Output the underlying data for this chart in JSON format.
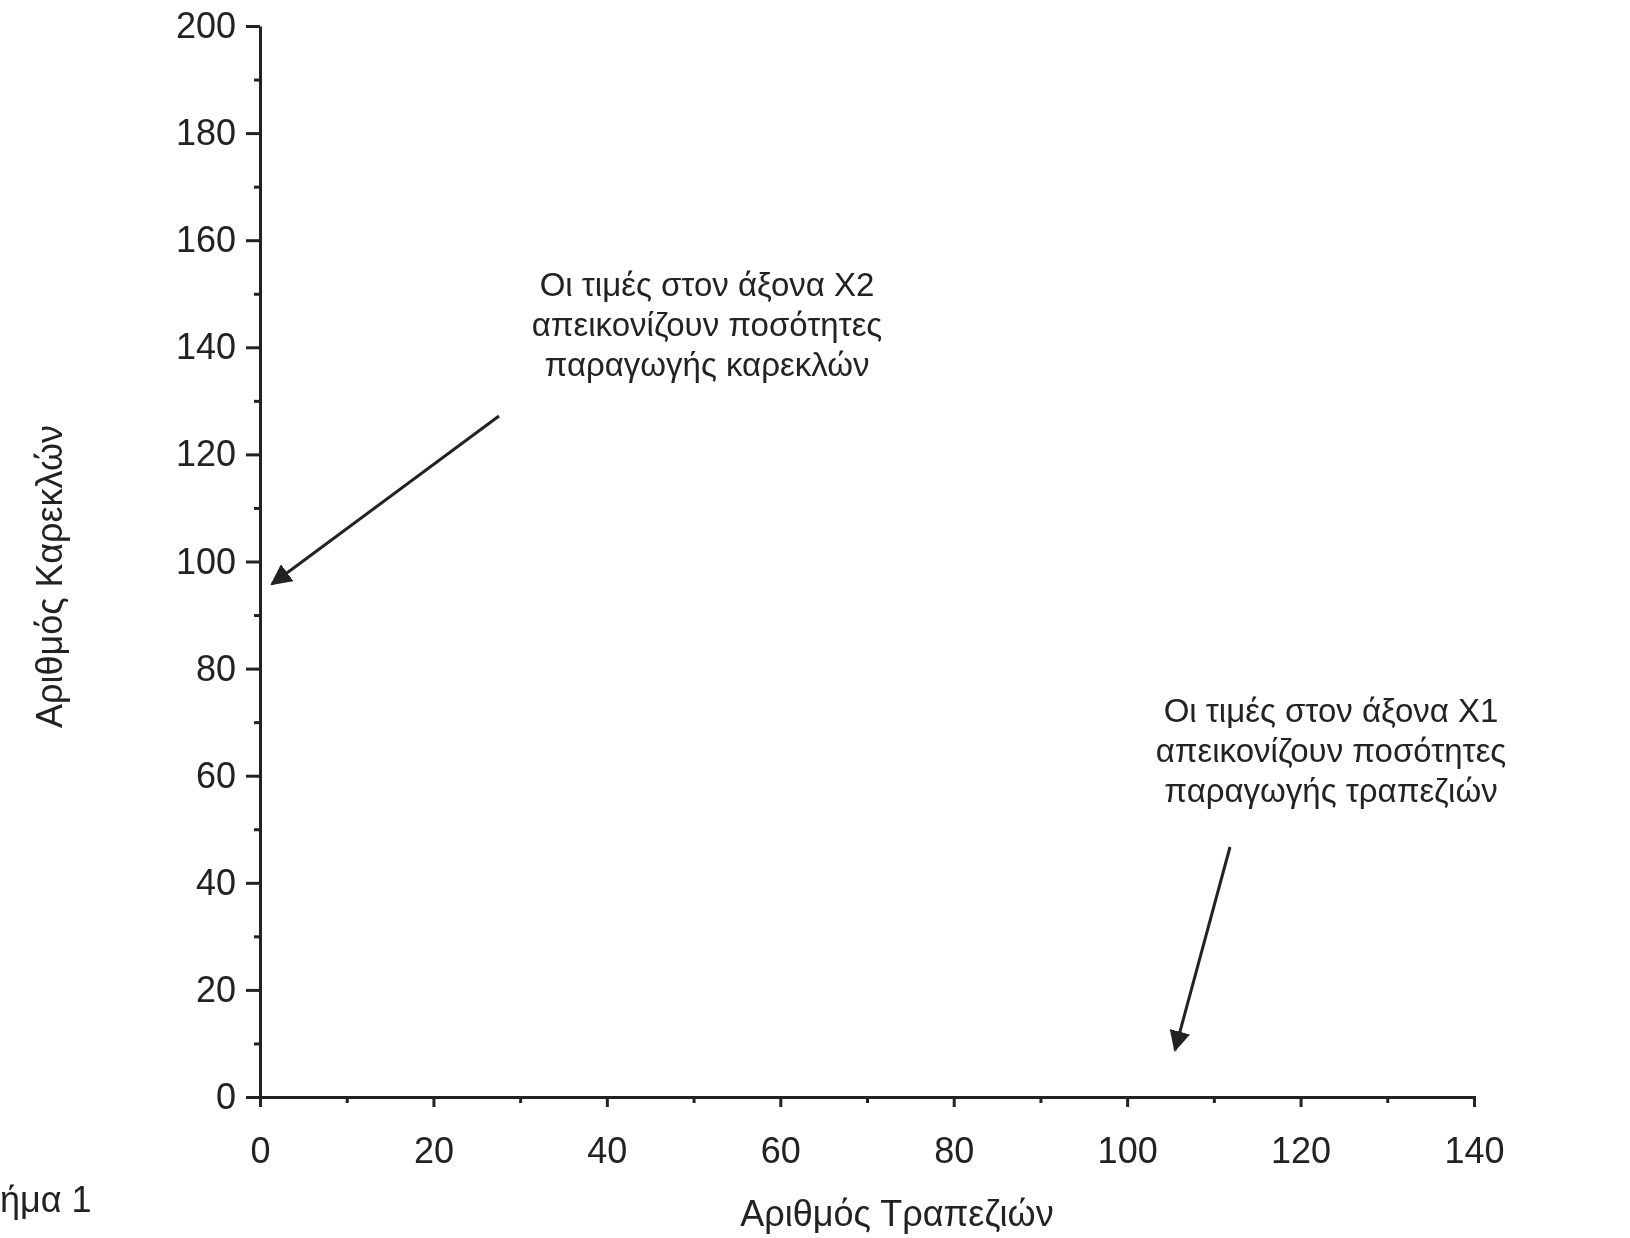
{
  "chart_data": {
    "type": "scatter",
    "xlabel": "Αριθμός Τραπεζιών",
    "ylabel": "Αριθμός Καρεκλών",
    "xlim": [
      0,
      140
    ],
    "ylim": [
      0,
      200
    ],
    "xticks": [
      0,
      {
        "value": 10,
        "label": null
      },
      20,
      {
        "value": 30,
        "label": null
      },
      40,
      {
        "value": 50,
        "label": null
      },
      60,
      {
        "value": 70,
        "label": null
      },
      80,
      {
        "value": 90,
        "label": null
      },
      100,
      {
        "value": 110,
        "label": null
      },
      120,
      {
        "value": 130,
        "label": null
      },
      140
    ],
    "yticks": [
      0,
      {
        "value": 10,
        "label": null
      },
      20,
      {
        "value": 30,
        "label": null
      },
      40,
      {
        "value": 50,
        "label": null
      },
      60,
      {
        "value": 70,
        "label": null
      },
      80,
      {
        "value": 90,
        "label": null
      },
      100,
      {
        "value": 110,
        "label": null
      },
      120,
      {
        "value": 130,
        "label": null
      },
      140,
      {
        "value": 150,
        "label": null
      },
      160,
      {
        "value": 170,
        "label": null
      },
      180,
      {
        "value": 190,
        "label": null
      },
      200
    ],
    "annotations": [
      "Οι τιμές στον άξονα Χ2\nαπεικονίζουν ποσότητες\nπαραγωγής καρεκλών",
      "Οι τιμές στον άξονα Χ1\nαπεικονίζουν ποσότητες\nπαραγωγής τραπεζιών",
      "ήμα 1"
    ]
  }
}
